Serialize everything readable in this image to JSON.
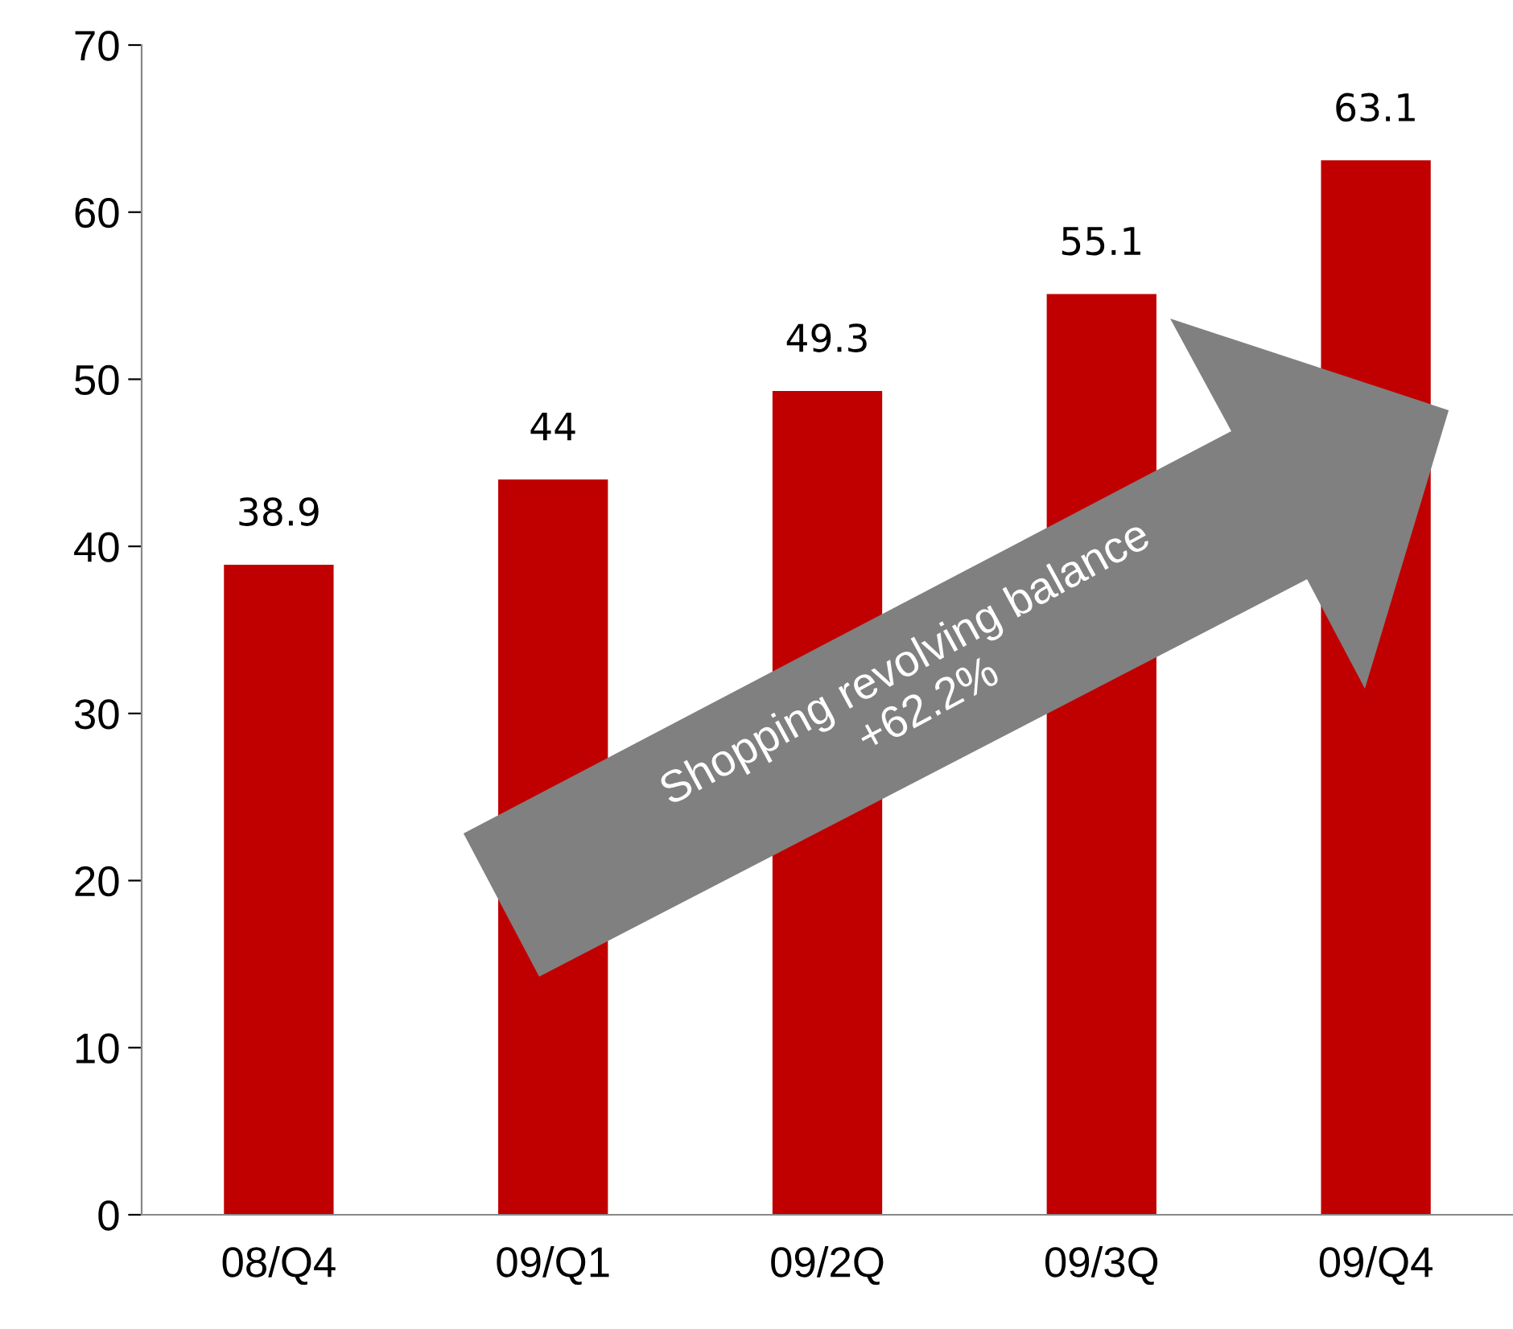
{
  "chart_data": {
    "type": "bar",
    "categories": [
      "08/Q4",
      "09/Q1",
      "09/2Q",
      "09/3Q",
      "09/Q4"
    ],
    "values": [
      38.9,
      44,
      49.3,
      55.1,
      63.1
    ],
    "color": "#c00000",
    "ylim": [
      0,
      70
    ],
    "yticks": [
      0,
      10,
      20,
      30,
      40,
      50,
      60,
      70
    ],
    "data_labels": true,
    "grid": false,
    "legend": false,
    "annotations": [
      "Shopping revolving balance\n+62.2%"
    ]
  }
}
